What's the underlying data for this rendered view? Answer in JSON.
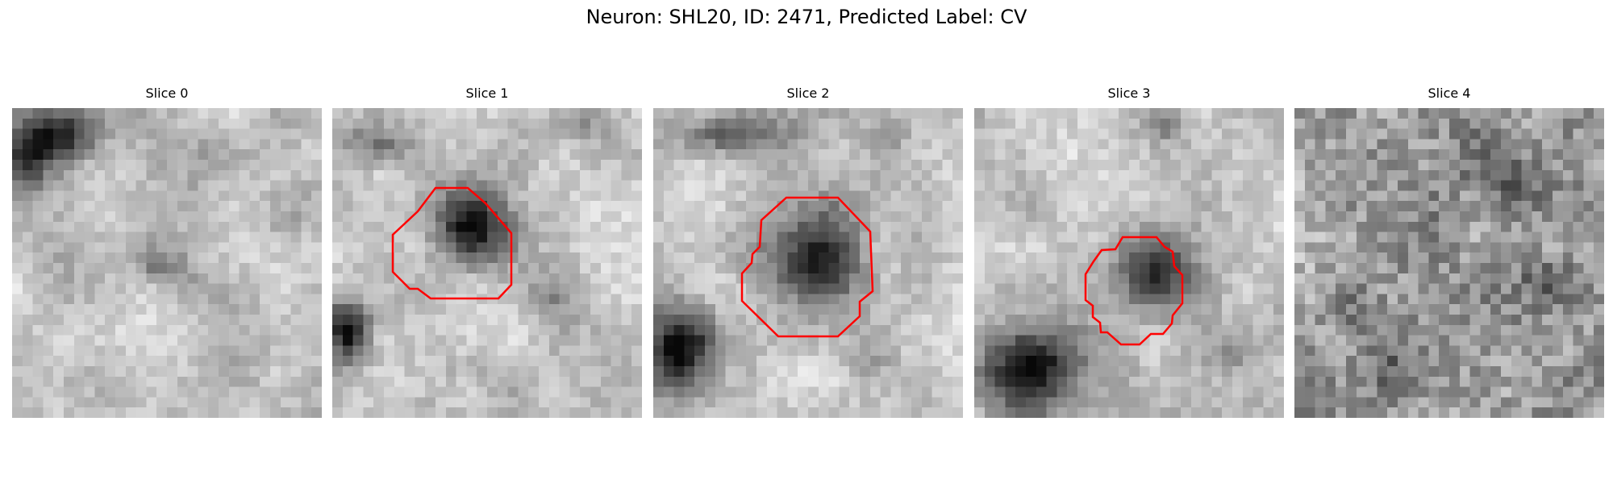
{
  "figure": {
    "title": "Neuron: SHL20, ID: 2471, Predicted Label: CV"
  },
  "panels": [
    {
      "title": "Slice 0",
      "has_contour": false
    },
    {
      "title": "Slice 1",
      "has_contour": true
    },
    {
      "title": "Slice 2",
      "has_contour": true
    },
    {
      "title": "Slice 3",
      "has_contour": true
    },
    {
      "title": "Slice 4",
      "has_contour": false
    }
  ],
  "colors": {
    "contour": "#ff0000"
  }
}
